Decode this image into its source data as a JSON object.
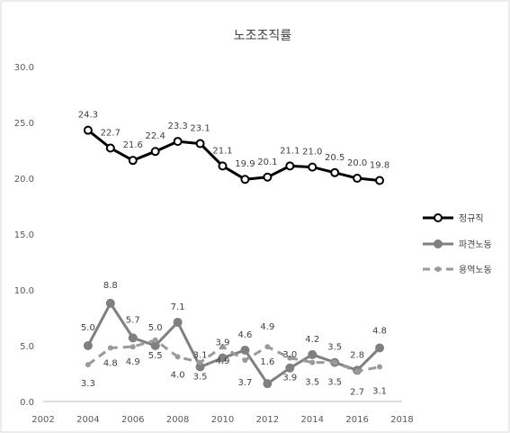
{
  "chart_data": {
    "type": "line",
    "title": "노조조직률",
    "xlabel": "",
    "ylabel": "",
    "xlim": [
      2002,
      2018
    ],
    "ylim": [
      0,
      30
    ],
    "xticks": [
      "2002",
      "2004",
      "2006",
      "2008",
      "2010",
      "2012",
      "2014",
      "2016",
      "2018"
    ],
    "yticks": [
      "0.0",
      "5.0",
      "10.0",
      "15.0",
      "20.0",
      "25.0",
      "30.0"
    ],
    "grid": false,
    "legend_position": "right",
    "x": [
      2004,
      2005,
      2006,
      2007,
      2008,
      2009,
      2010,
      2011,
      2012,
      2013,
      2014,
      2015,
      2016,
      2017
    ],
    "series": [
      {
        "name": "정규직",
        "color": "#000000",
        "style": "solid",
        "values": [
          24.3,
          22.7,
          21.6,
          22.4,
          23.3,
          23.1,
          21.1,
          19.9,
          20.1,
          21.1,
          21.0,
          20.5,
          20.0,
          19.8
        ],
        "labels": [
          "24.3",
          "22.7",
          "21.6",
          "22.4",
          "23.3",
          "23.1",
          "21.1",
          "19.9",
          "20.1",
          "21.1",
          "21.0",
          "20.5",
          "20.0",
          "19.8"
        ]
      },
      {
        "name": "파견노동",
        "color": "#808080",
        "style": "solid",
        "values": [
          5.0,
          8.8,
          5.7,
          5.0,
          7.1,
          3.1,
          3.9,
          4.6,
          1.6,
          3.0,
          4.2,
          3.5,
          2.8,
          4.8
        ],
        "labels": [
          "5.0",
          "8.8",
          "5.7",
          "5.0",
          "7.1",
          "3.1",
          "3.9",
          "4.6",
          "1.6",
          "3.0",
          "4.2",
          "3.5",
          "2.8",
          "4.8"
        ]
      },
      {
        "name": "용역노동",
        "color": "#9a9a9a",
        "style": "dashed",
        "values": [
          3.3,
          4.8,
          4.9,
          5.5,
          4.0,
          3.5,
          4.9,
          3.7,
          4.9,
          3.9,
          3.5,
          3.5,
          2.7,
          3.1
        ],
        "labels": [
          "3.3",
          "4.8",
          "4.9",
          "5.5",
          "4.0",
          "3.5",
          "4.9",
          "3.7",
          "4.9",
          "3.9",
          "3.5",
          "3.5",
          "2.7",
          "3.1"
        ]
      }
    ]
  }
}
